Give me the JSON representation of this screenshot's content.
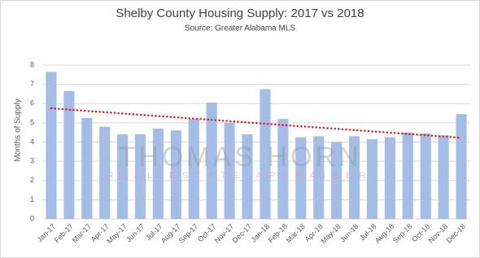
{
  "chart_data": {
    "type": "bar",
    "title": "Shelby County Housing Supply: 2017 vs 2018",
    "subtitle": "Source: Greater Alabama MLS",
    "y_label": "Months of Supply",
    "categories": [
      "Jan-17",
      "Feb-17",
      "Mar-17",
      "Apr-17",
      "May-17",
      "Jun-17",
      "Jul-17",
      "Aug-17",
      "Sep-17",
      "Oct-17",
      "Nov-17",
      "Dec-17",
      "Jan-18",
      "Feb-18",
      "Mar-18",
      "Apr-18",
      "May-18",
      "Jun-18",
      "Jul-18",
      "Aug-18",
      "Sep-18",
      "Oct-18",
      "Nov-18",
      "Dec-18"
    ],
    "values": [
      7.65,
      6.65,
      5.25,
      4.8,
      4.4,
      4.4,
      4.7,
      4.6,
      5.2,
      6.05,
      5.0,
      4.4,
      6.75,
      5.2,
      4.25,
      4.3,
      4.0,
      4.3,
      4.15,
      4.25,
      4.5,
      4.45,
      4.35,
      5.45
    ],
    "color": "#a3bde6",
    "ylim": [
      0,
      8
    ],
    "yticks": [
      0,
      1,
      2,
      3,
      4,
      5,
      6,
      7,
      8
    ],
    "grid": true,
    "trendline": {
      "color": "#e0191e",
      "values": [
        5.75,
        4.22
      ]
    },
    "watermark": {
      "title": "THOMAS HORN",
      "subtitle": "REAL ESTATE APPRAISER"
    }
  }
}
